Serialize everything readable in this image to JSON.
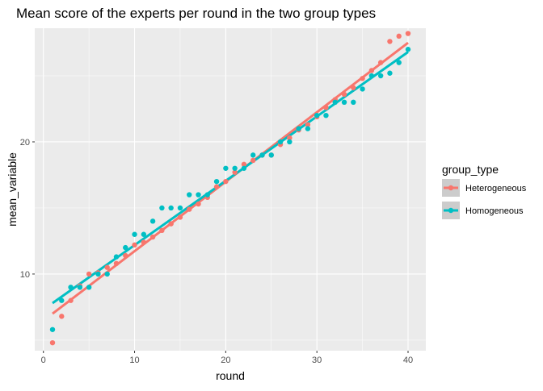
{
  "chart_data": {
    "type": "scatter",
    "title": "Mean score of the experts per round in the two group types",
    "xlabel": "round",
    "ylabel": "mean_variable",
    "xlim": [
      -0.95,
      41.95
    ],
    "ylim": [
      4.2,
      28.6
    ],
    "x_ticks": [
      0,
      10,
      20,
      30,
      40
    ],
    "x_tick_labels": [
      "0",
      "10",
      "20",
      "30",
      "40"
    ],
    "y_ticks": [
      10,
      20
    ],
    "y_tick_labels": [
      "10",
      "20"
    ],
    "grid": true,
    "legend": {
      "title": "group_type",
      "position": "right"
    },
    "series": [
      {
        "name": "Heterogeneous",
        "color": "#F8766D",
        "x": [
          1,
          2,
          3,
          4,
          5,
          6,
          7,
          8,
          9,
          10,
          11,
          12,
          13,
          14,
          15,
          16,
          17,
          18,
          19,
          20,
          21,
          22,
          23,
          24,
          25,
          26,
          27,
          28,
          29,
          30,
          31,
          32,
          33,
          34,
          35,
          36,
          37,
          38,
          39,
          40
        ],
        "y": [
          4.8,
          6.8,
          8.0,
          9.1,
          10.0,
          10.1,
          10.5,
          10.8,
          11.4,
          12.2,
          12.4,
          12.8,
          13.3,
          13.8,
          14.3,
          14.9,
          15.3,
          15.8,
          16.6,
          17.0,
          17.7,
          18.3,
          18.6,
          19.0,
          19.0,
          19.8,
          20.3,
          20.9,
          21.3,
          21.9,
          22.6,
          23.2,
          23.6,
          24.1,
          24.8,
          25.4,
          26.0,
          27.6,
          28.0,
          28.2
        ],
        "trend": [
          7.0,
          27.5
        ]
      },
      {
        "name": "Homogeneous",
        "color": "#00BFC4",
        "x": [
          1,
          2,
          3,
          4,
          5,
          6,
          7,
          8,
          9,
          10,
          11,
          12,
          13,
          14,
          15,
          16,
          17,
          18,
          19,
          20,
          21,
          22,
          23,
          24,
          25,
          26,
          27,
          28,
          29,
          30,
          31,
          32,
          33,
          34,
          35,
          36,
          37,
          38,
          39,
          40
        ],
        "y": [
          5.8,
          8.0,
          9.0,
          9.0,
          9.0,
          10.0,
          10.0,
          11.3,
          12.0,
          13.0,
          13.0,
          14.0,
          15.0,
          15.0,
          15.0,
          16.0,
          16.0,
          16.0,
          17.0,
          18.0,
          18.0,
          18.0,
          19.0,
          19.0,
          19.0,
          20.0,
          20.0,
          21.0,
          21.0,
          22.0,
          22.0,
          23.0,
          23.0,
          23.0,
          24.0,
          25.0,
          25.0,
          25.2,
          26.0,
          27.0
        ],
        "trend": [
          7.8,
          26.8
        ]
      }
    ]
  }
}
